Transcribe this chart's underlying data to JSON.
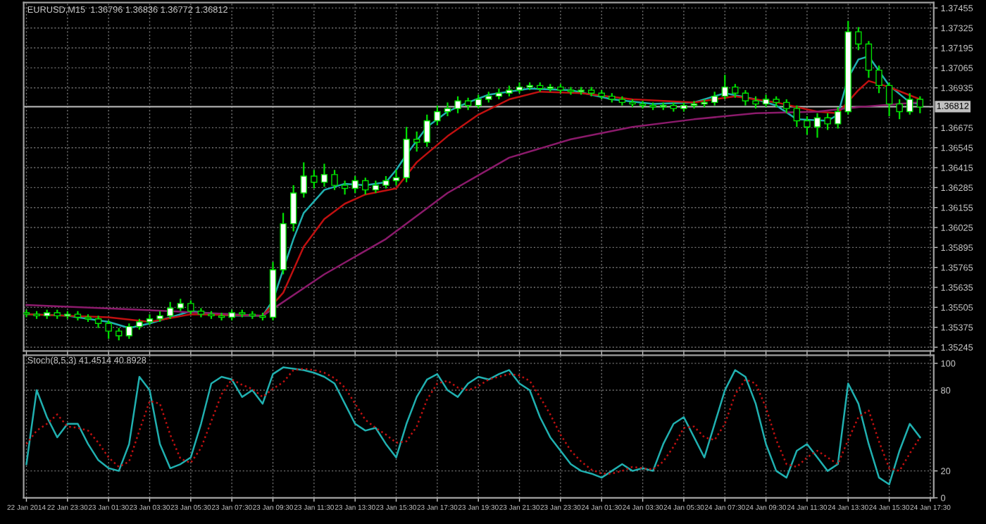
{
  "chart_data": [
    {
      "type": "candlestick",
      "title": "EURUSD,M15  1.36796 1.36836 1.36772 1.36812",
      "color": "#00e000",
      "x": [
        "2014-01-22T21:30",
        "2014-01-22T22:00",
        "2014-01-22T22:30",
        "2014-01-22T23:00",
        "2014-01-22T23:30",
        "2014-01-23T00:00",
        "2014-01-23T00:30",
        "2014-01-23T01:00",
        "2014-01-23T01:30",
        "2014-01-23T02:00",
        "2014-01-23T02:30",
        "2014-01-23T03:00",
        "2014-01-23T03:30",
        "2014-01-23T04:00",
        "2014-01-23T04:30",
        "2014-01-23T05:00",
        "2014-01-23T05:30",
        "2014-01-23T06:00",
        "2014-01-23T06:30",
        "2014-01-23T07:00",
        "2014-01-23T07:30",
        "2014-01-23T08:00",
        "2014-01-23T08:30",
        "2014-01-23T09:00",
        "2014-01-23T09:30",
        "2014-01-23T10:00",
        "2014-01-23T10:30",
        "2014-01-23T11:00",
        "2014-01-23T11:30",
        "2014-01-23T12:00",
        "2014-01-23T12:30",
        "2014-01-23T13:00",
        "2014-01-23T13:30",
        "2014-01-23T14:00",
        "2014-01-23T14:30",
        "2014-01-23T15:00",
        "2014-01-23T15:30",
        "2014-01-23T16:00",
        "2014-01-23T16:30",
        "2014-01-23T17:00",
        "2014-01-23T17:30",
        "2014-01-23T18:00",
        "2014-01-23T18:30",
        "2014-01-23T19:00",
        "2014-01-23T19:30",
        "2014-01-23T20:00",
        "2014-01-23T20:30",
        "2014-01-23T21:00",
        "2014-01-23T21:30",
        "2014-01-23T22:00",
        "2014-01-23T22:30",
        "2014-01-23T23:00",
        "2014-01-23T23:30",
        "2014-01-24T00:00",
        "2014-01-24T00:30",
        "2014-01-24T01:00",
        "2014-01-24T01:30",
        "2014-01-24T02:00",
        "2014-01-24T02:30",
        "2014-01-24T03:00",
        "2014-01-24T03:30",
        "2014-01-24T04:00",
        "2014-01-24T04:30",
        "2014-01-24T05:00",
        "2014-01-24T05:30",
        "2014-01-24T06:00",
        "2014-01-24T06:30",
        "2014-01-24T07:00",
        "2014-01-24T07:30",
        "2014-01-24T08:00",
        "2014-01-24T08:30",
        "2014-01-24T09:00",
        "2014-01-24T09:30",
        "2014-01-24T10:00",
        "2014-01-24T10:30",
        "2014-01-24T11:00",
        "2014-01-24T11:30",
        "2014-01-24T12:00",
        "2014-01-24T12:30",
        "2014-01-24T13:00",
        "2014-01-24T13:30",
        "2014-01-24T14:00",
        "2014-01-24T14:30",
        "2014-01-24T15:00",
        "2014-01-24T15:30",
        "2014-01-24T16:00",
        "2014-01-24T16:30",
        "2014-01-24T17:00"
      ],
      "ohlc": [
        [
          1.3547,
          1.3549,
          1.3544,
          1.3546
        ],
        [
          1.3546,
          1.3548,
          1.3543,
          1.3545
        ],
        [
          1.3545,
          1.3549,
          1.3543,
          1.3547
        ],
        [
          1.3547,
          1.3549,
          1.3543,
          1.3545
        ],
        [
          1.3545,
          1.3548,
          1.3543,
          1.3546
        ],
        [
          1.3546,
          1.3548,
          1.3542,
          1.3544
        ],
        [
          1.3544,
          1.3546,
          1.3541,
          1.3543
        ],
        [
          1.3543,
          1.3545,
          1.3537,
          1.354
        ],
        [
          1.354,
          1.3542,
          1.353,
          1.3535
        ],
        [
          1.3535,
          1.3537,
          1.3529,
          1.3532
        ],
        [
          1.3532,
          1.354,
          1.353,
          1.3538
        ],
        [
          1.3538,
          1.3543,
          1.3536,
          1.3541
        ],
        [
          1.3541,
          1.3546,
          1.3539,
          1.3543
        ],
        [
          1.3543,
          1.3548,
          1.3541,
          1.3545
        ],
        [
          1.3545,
          1.3554,
          1.3543,
          1.355
        ],
        [
          1.355,
          1.3556,
          1.3548,
          1.3553
        ],
        [
          1.3553,
          1.3555,
          1.3546,
          1.3548
        ],
        [
          1.3548,
          1.355,
          1.3544,
          1.3546
        ],
        [
          1.3546,
          1.3548,
          1.3543,
          1.3545
        ],
        [
          1.3545,
          1.3547,
          1.3542,
          1.3544
        ],
        [
          1.3544,
          1.3549,
          1.3542,
          1.3547
        ],
        [
          1.3547,
          1.3549,
          1.3544,
          1.3546
        ],
        [
          1.3546,
          1.3548,
          1.3543,
          1.3545
        ],
        [
          1.3545,
          1.3547,
          1.3542,
          1.3544
        ],
        [
          1.3544,
          1.358,
          1.3542,
          1.3575
        ],
        [
          1.3575,
          1.3612,
          1.3572,
          1.3605
        ],
        [
          1.3605,
          1.363,
          1.36,
          1.3625
        ],
        [
          1.3625,
          1.3645,
          1.3622,
          1.3636
        ],
        [
          1.3636,
          1.364,
          1.3628,
          1.3632
        ],
        [
          1.3632,
          1.3644,
          1.3629,
          1.3637
        ],
        [
          1.3637,
          1.364,
          1.3627,
          1.363
        ],
        [
          1.363,
          1.3633,
          1.3624,
          1.3628
        ],
        [
          1.3628,
          1.3636,
          1.3625,
          1.3633
        ],
        [
          1.3633,
          1.3635,
          1.3624,
          1.3627
        ],
        [
          1.3627,
          1.3633,
          1.3625,
          1.363
        ],
        [
          1.363,
          1.3636,
          1.3628,
          1.3633
        ],
        [
          1.3633,
          1.364,
          1.363,
          1.3635
        ],
        [
          1.3635,
          1.3668,
          1.3632,
          1.366
        ],
        [
          1.366,
          1.3665,
          1.3652,
          1.3658
        ],
        [
          1.3658,
          1.3676,
          1.3655,
          1.3672
        ],
        [
          1.3672,
          1.3682,
          1.3669,
          1.3678
        ],
        [
          1.3678,
          1.3684,
          1.3675,
          1.368
        ],
        [
          1.368,
          1.3688,
          1.3677,
          1.3685
        ],
        [
          1.3685,
          1.3687,
          1.3679,
          1.3682
        ],
        [
          1.3682,
          1.3689,
          1.368,
          1.3686
        ],
        [
          1.3686,
          1.3691,
          1.3684,
          1.3688
        ],
        [
          1.3688,
          1.3693,
          1.3686,
          1.369
        ],
        [
          1.369,
          1.3695,
          1.3688,
          1.3692
        ],
        [
          1.3692,
          1.3697,
          1.369,
          1.3694
        ],
        [
          1.3694,
          1.3697,
          1.3692,
          1.3695
        ],
        [
          1.3695,
          1.3697,
          1.3691,
          1.3693
        ],
        [
          1.3693,
          1.3696,
          1.3691,
          1.3694
        ],
        [
          1.3694,
          1.3696,
          1.369,
          1.3692
        ],
        [
          1.3692,
          1.3694,
          1.3689,
          1.3691
        ],
        [
          1.3691,
          1.3694,
          1.3689,
          1.3692
        ],
        [
          1.3692,
          1.3694,
          1.3688,
          1.369
        ],
        [
          1.369,
          1.3692,
          1.3686,
          1.3688
        ],
        [
          1.3688,
          1.369,
          1.3684,
          1.3686
        ],
        [
          1.3686,
          1.3688,
          1.3682,
          1.3684
        ],
        [
          1.3684,
          1.3686,
          1.3681,
          1.3683
        ],
        [
          1.3683,
          1.3685,
          1.368,
          1.3682
        ],
        [
          1.3682,
          1.3684,
          1.3679,
          1.3681
        ],
        [
          1.3681,
          1.3684,
          1.3679,
          1.3682
        ],
        [
          1.3682,
          1.3684,
          1.3678,
          1.368
        ],
        [
          1.368,
          1.3684,
          1.3678,
          1.3682
        ],
        [
          1.3682,
          1.3685,
          1.368,
          1.3683
        ],
        [
          1.3683,
          1.3686,
          1.3681,
          1.3684
        ],
        [
          1.3684,
          1.3691,
          1.3682,
          1.3688
        ],
        [
          1.3688,
          1.3702,
          1.3686,
          1.3694
        ],
        [
          1.3694,
          1.3696,
          1.3687,
          1.369
        ],
        [
          1.369,
          1.3692,
          1.3682,
          1.3685
        ],
        [
          1.3685,
          1.3688,
          1.368,
          1.3683
        ],
        [
          1.3683,
          1.3689,
          1.3681,
          1.3686
        ],
        [
          1.3686,
          1.3688,
          1.3681,
          1.3684
        ],
        [
          1.3684,
          1.3686,
          1.3677,
          1.368
        ],
        [
          1.368,
          1.3682,
          1.3668,
          1.3672
        ],
        [
          1.3672,
          1.3675,
          1.3663,
          1.3668
        ],
        [
          1.3668,
          1.3677,
          1.3661,
          1.3674
        ],
        [
          1.3674,
          1.3677,
          1.3666,
          1.367
        ],
        [
          1.367,
          1.3681,
          1.3667,
          1.3678
        ],
        [
          1.3678,
          1.3737,
          1.3676,
          1.373
        ],
        [
          1.373,
          1.3733,
          1.3718,
          1.3722
        ],
        [
          1.3722,
          1.3724,
          1.37,
          1.3705
        ],
        [
          1.3705,
          1.3708,
          1.369,
          1.3695
        ],
        [
          1.3695,
          1.3697,
          1.3675,
          1.3683
        ],
        [
          1.3683,
          1.3686,
          1.3673,
          1.3678
        ],
        [
          1.3678,
          1.369,
          1.3676,
          1.3686
        ],
        [
          1.3686,
          1.3688,
          1.3677,
          1.3681
        ]
      ],
      "series": [
        {
          "type": "line",
          "color": "#20b0b0",
          "x": [
            "2014-01-22T21:30",
            "2014-01-22T23:30",
            "2014-01-23T01:30",
            "2014-01-23T02:30",
            "2014-01-23T03:30",
            "2014-01-23T05:30",
            "2014-01-23T07:30",
            "2014-01-23T09:00",
            "2014-01-23T09:30",
            "2014-01-23T10:00",
            "2014-01-23T10:30",
            "2014-01-23T11:00",
            "2014-01-23T12:00",
            "2014-01-23T13:00",
            "2014-01-23T14:00",
            "2014-01-23T15:00",
            "2014-01-23T15:30",
            "2014-01-23T16:00",
            "2014-01-23T17:00",
            "2014-01-23T18:00",
            "2014-01-23T19:00",
            "2014-01-23T20:00",
            "2014-01-23T22:00",
            "2014-01-24T00:00",
            "2014-01-24T02:00",
            "2014-01-24T04:00",
            "2014-01-24T06:00",
            "2014-01-24T07:30",
            "2014-01-24T09:00",
            "2014-01-24T10:00",
            "2014-01-24T11:00",
            "2014-01-24T12:30",
            "2014-01-24T13:00",
            "2014-01-24T13:30",
            "2014-01-24T14:00",
            "2014-01-24T14:30",
            "2014-01-24T15:30",
            "2014-01-24T16:30",
            "2014-01-24T17:00"
          ],
          "values": [
            1.3546,
            1.3545,
            1.3541,
            1.3537,
            1.354,
            1.3548,
            1.3545,
            1.3545,
            1.3555,
            1.3575,
            1.3595,
            1.3612,
            1.3627,
            1.3631,
            1.363,
            1.3632,
            1.364,
            1.365,
            1.3668,
            1.3678,
            1.3684,
            1.3689,
            1.3693,
            1.3692,
            1.3686,
            1.3683,
            1.3684,
            1.369,
            1.3686,
            1.3682,
            1.3673,
            1.3672,
            1.3676,
            1.37,
            1.3712,
            1.3714,
            1.3695,
            1.3684,
            1.3683
          ]
        },
        {
          "type": "line",
          "color": "#c01010",
          "x": [
            "2014-01-22T21:30",
            "2014-01-23T01:30",
            "2014-01-23T03:30",
            "2014-01-23T05:30",
            "2014-01-23T09:00",
            "2014-01-23T10:00",
            "2014-01-23T11:00",
            "2014-01-23T12:00",
            "2014-01-23T13:00",
            "2014-01-23T14:00",
            "2014-01-23T15:30",
            "2014-01-23T16:30",
            "2014-01-23T18:00",
            "2014-01-23T19:30",
            "2014-01-23T21:00",
            "2014-01-23T22:30",
            "2014-01-24T00:30",
            "2014-01-24T03:00",
            "2014-01-24T06:00",
            "2014-01-24T08:00",
            "2014-01-24T10:00",
            "2014-01-24T12:00",
            "2014-01-24T13:00",
            "2014-01-24T14:00",
            "2014-01-24T14:30",
            "2014-01-24T15:30",
            "2014-01-24T17:00"
          ],
          "values": [
            1.3546,
            1.3544,
            1.3541,
            1.3546,
            1.3545,
            1.356,
            1.359,
            1.3608,
            1.3618,
            1.3624,
            1.3628,
            1.3645,
            1.3662,
            1.3676,
            1.3686,
            1.3691,
            1.369,
            1.3686,
            1.3684,
            1.3688,
            1.3684,
            1.3678,
            1.3677,
            1.3692,
            1.3698,
            1.3694,
            1.3686
          ]
        },
        {
          "type": "line",
          "color": "#8b1a6b",
          "x": [
            "2014-01-22T21:30",
            "2014-01-23T03:00",
            "2014-01-23T09:00",
            "2014-01-23T12:00",
            "2014-01-23T15:00",
            "2014-01-23T18:00",
            "2014-01-23T21:00",
            "2014-01-24T00:00",
            "2014-01-24T03:00",
            "2014-01-24T06:00",
            "2014-01-24T09:00",
            "2014-01-24T12:00",
            "2014-01-24T14:00",
            "2014-01-24T17:00"
          ],
          "values": [
            1.3552,
            1.3549,
            1.3545,
            1.3572,
            1.3595,
            1.3625,
            1.3648,
            1.366,
            1.3668,
            1.3673,
            1.3677,
            1.3678,
            1.3681,
            1.3684
          ]
        }
      ],
      "ref_lines": [
        {
          "axis": "y",
          "value": 1.36812,
          "label": "1.36812",
          "color": "#c0c0c0"
        }
      ],
      "xlim": [
        "2014-01-22T21:22",
        "2014-01-24T17:40"
      ],
      "ylim": [
        1.3522,
        1.3749
      ],
      "yticks": [
        1.37455,
        1.37325,
        1.37195,
        1.37065,
        1.36935,
        1.36675,
        1.36545,
        1.36415,
        1.36285,
        1.36155,
        1.36025,
        1.35895,
        1.35765,
        1.35635,
        1.35505,
        1.35375,
        1.35245
      ],
      "grid": true,
      "tick_labels": "y"
    },
    {
      "type": "line",
      "title": "Stoch(8,5,3) 41.4514 40.8928",
      "x": [
        "2014-01-22T21:30",
        "2014-01-22T22:00",
        "2014-01-22T22:30",
        "2014-01-22T23:00",
        "2014-01-22T23:30",
        "2014-01-23T00:00",
        "2014-01-23T00:30",
        "2014-01-23T01:00",
        "2014-01-23T01:30",
        "2014-01-23T02:00",
        "2014-01-23T02:30",
        "2014-01-23T03:00",
        "2014-01-23T03:30",
        "2014-01-23T04:00",
        "2014-01-23T04:30",
        "2014-01-23T05:00",
        "2014-01-23T05:30",
        "2014-01-23T06:00",
        "2014-01-23T06:30",
        "2014-01-23T07:00",
        "2014-01-23T07:30",
        "2014-01-23T08:00",
        "2014-01-23T08:30",
        "2014-01-23T09:00",
        "2014-01-23T09:30",
        "2014-01-23T10:00",
        "2014-01-23T10:30",
        "2014-01-23T11:00",
        "2014-01-23T11:30",
        "2014-01-23T12:00",
        "2014-01-23T12:30",
        "2014-01-23T13:00",
        "2014-01-23T13:30",
        "2014-01-23T14:00",
        "2014-01-23T14:30",
        "2014-01-23T15:00",
        "2014-01-23T15:30",
        "2014-01-23T16:00",
        "2014-01-23T16:30",
        "2014-01-23T17:00",
        "2014-01-23T17:30",
        "2014-01-23T18:00",
        "2014-01-23T18:30",
        "2014-01-23T19:00",
        "2014-01-23T19:30",
        "2014-01-23T20:00",
        "2014-01-23T20:30",
        "2014-01-23T21:00",
        "2014-01-23T21:30",
        "2014-01-23T22:00",
        "2014-01-23T22:30",
        "2014-01-23T23:00",
        "2014-01-23T23:30",
        "2014-01-24T00:00",
        "2014-01-24T00:30",
        "2014-01-24T01:00",
        "2014-01-24T01:30",
        "2014-01-24T02:00",
        "2014-01-24T02:30",
        "2014-01-24T03:00",
        "2014-01-24T03:30",
        "2014-01-24T04:00",
        "2014-01-24T04:30",
        "2014-01-24T05:00",
        "2014-01-24T05:30",
        "2014-01-24T06:00",
        "2014-01-24T06:30",
        "2014-01-24T07:00",
        "2014-01-24T07:30",
        "2014-01-24T08:00",
        "2014-01-24T08:30",
        "2014-01-24T09:00",
        "2014-01-24T09:30",
        "2014-01-24T10:00",
        "2014-01-24T10:30",
        "2014-01-24T11:00",
        "2014-01-24T11:30",
        "2014-01-24T12:00",
        "2014-01-24T12:30",
        "2014-01-24T13:00",
        "2014-01-24T13:30",
        "2014-01-24T14:00",
        "2014-01-24T14:30",
        "2014-01-24T15:00",
        "2014-01-24T15:30",
        "2014-01-24T16:00",
        "2014-01-24T16:30",
        "2014-01-24T17:00"
      ],
      "series": [
        {
          "color": "#20b0b0",
          "values": [
            25,
            80,
            60,
            45,
            55,
            55,
            40,
            28,
            22,
            20,
            40,
            90,
            80,
            40,
            22,
            25,
            30,
            55,
            85,
            90,
            88,
            75,
            80,
            70,
            92,
            97,
            96,
            95,
            93,
            90,
            85,
            70,
            55,
            50,
            52,
            40,
            30,
            55,
            75,
            88,
            92,
            80,
            75,
            85,
            90,
            88,
            92,
            95,
            85,
            80,
            60,
            45,
            35,
            25,
            20,
            18,
            15,
            20,
            25,
            20,
            22,
            20,
            40,
            55,
            60,
            45,
            30,
            55,
            80,
            95,
            90,
            70,
            40,
            20,
            15,
            35,
            40,
            30,
            20,
            25,
            85,
            70,
            40,
            15,
            10,
            35,
            55,
            45
          ]
        },
        {
          "color": "#c01010",
          "line_style": "dotted",
          "values": [
            40,
            50,
            55,
            62,
            53,
            52,
            50,
            41,
            30,
            23,
            27,
            50,
            72,
            70,
            47,
            29,
            26,
            37,
            57,
            77,
            88,
            84,
            81,
            75,
            81,
            86,
            95,
            96,
            95,
            93,
            89,
            82,
            70,
            58,
            52,
            47,
            41,
            42,
            53,
            73,
            85,
            87,
            82,
            80,
            83,
            88,
            90,
            92,
            91,
            87,
            75,
            62,
            47,
            35,
            27,
            21,
            18,
            18,
            20,
            23,
            22,
            21,
            27,
            38,
            52,
            53,
            45,
            43,
            55,
            77,
            88,
            85,
            67,
            43,
            25,
            23,
            30,
            35,
            30,
            25,
            43,
            60,
            65,
            42,
            22,
            20,
            33,
            45
          ]
        }
      ],
      "xlim": [
        "2014-01-22T21:22",
        "2014-01-24T17:40"
      ],
      "ylim": [
        0,
        106
      ],
      "yticks": [
        100,
        80,
        20,
        0
      ],
      "xticks": [
        {
          "value": "2014-01-22T21:30",
          "label": "22 Jan 2014"
        },
        {
          "value": "2014-01-22T23:30",
          "label": "22 Jan 23:30"
        },
        {
          "value": "2014-01-23T01:30",
          "label": "23 Jan 01:30"
        },
        {
          "value": "2014-01-23T03:30",
          "label": "23 Jan 03:30"
        },
        {
          "value": "2014-01-23T05:30",
          "label": "23 Jan 05:30"
        },
        {
          "value": "2014-01-23T07:30",
          "label": "23 Jan 07:30"
        },
        {
          "value": "2014-01-23T09:30",
          "label": "23 Jan 09:30"
        },
        {
          "value": "2014-01-23T11:30",
          "label": "23 Jan 11:30"
        },
        {
          "value": "2014-01-23T13:30",
          "label": "23 Jan 13:30"
        },
        {
          "value": "2014-01-23T15:30",
          "label": "23 Jan 15:30"
        },
        {
          "value": "2014-01-23T17:30",
          "label": "23 Jan 17:30"
        },
        {
          "value": "2014-01-23T19:30",
          "label": "23 Jan 19:30"
        },
        {
          "value": "2014-01-23T21:30",
          "label": "23 Jan 21:30"
        },
        {
          "value": "2014-01-23T23:30",
          "label": "23 Jan 23:30"
        },
        {
          "value": "2014-01-24T01:30",
          "label": "24 Jan 01:30"
        },
        {
          "value": "2014-01-24T03:30",
          "label": "24 Jan 03:30"
        },
        {
          "value": "2014-01-24T05:30",
          "label": "24 Jan 05:30"
        },
        {
          "value": "2014-01-24T07:30",
          "label": "24 Jan 07:30"
        },
        {
          "value": "2014-01-24T09:30",
          "label": "24 Jan 09:30"
        },
        {
          "value": "2014-01-24T11:30",
          "label": "24 Jan 11:30"
        },
        {
          "value": "2014-01-24T13:30",
          "label": "24 Jan 13:30"
        },
        {
          "value": "2014-01-24T15:30",
          "label": "24 Jan 15:30"
        },
        {
          "value": "2014-01-24T17:30",
          "label": "24 Jan 17:30"
        }
      ],
      "grid": true
    }
  ]
}
